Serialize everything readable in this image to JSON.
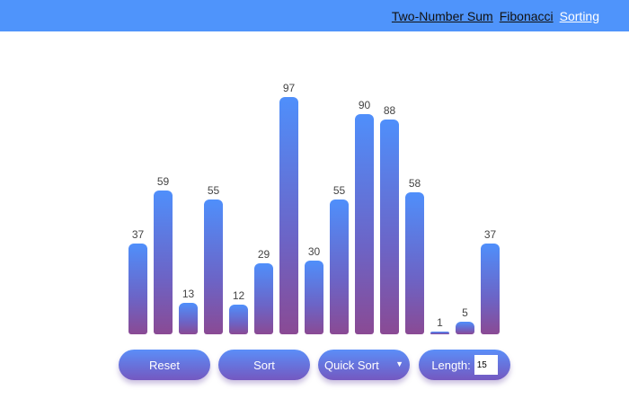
{
  "nav": {
    "links": [
      {
        "label": "Two-Number Sum",
        "active": false
      },
      {
        "label": "Fibonacci",
        "active": false
      },
      {
        "label": "Sorting",
        "active": true
      }
    ]
  },
  "chart_data": {
    "type": "bar",
    "values": [
      37,
      59,
      13,
      55,
      12,
      29,
      97,
      30,
      55,
      90,
      88,
      58,
      1,
      5,
      37
    ],
    "ylim": [
      0,
      100
    ]
  },
  "controls": {
    "reset_label": "Reset",
    "sort_label": "Sort",
    "algorithm_selected": "Quick Sort",
    "length_label": "Length:",
    "length_value": "15"
  },
  "colors": {
    "navbar": "#4f94fb",
    "bar_top": "#4f8ffb",
    "bar_bottom": "#8a4a94",
    "nav_active": "#ffffff"
  }
}
